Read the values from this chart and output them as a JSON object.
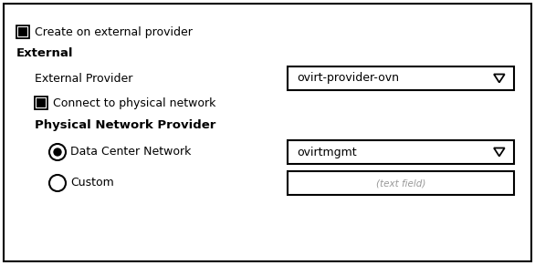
{
  "bg_color": "#ffffff",
  "border_color": "#000000",
  "text_color": "#000000",
  "gray_text_color": "#999999",
  "checkbox_checked_label": "Create on external provider",
  "section_external": "External",
  "label_external_provider": "External Provider",
  "dropdown_external_value": "ovirt-provider-ovn",
  "checkbox_connect_label": "Connect to physical network",
  "section_physical": "Physical Network Provider",
  "radio_datacenter_label": "Data Center Network",
  "dropdown_datacenter_value": "ovirtmgmt",
  "radio_custom_label": "Custom",
  "textfield_placeholder": "(text field)",
  "figsize": [
    5.86,
    2.91
  ],
  "dpi": 100
}
